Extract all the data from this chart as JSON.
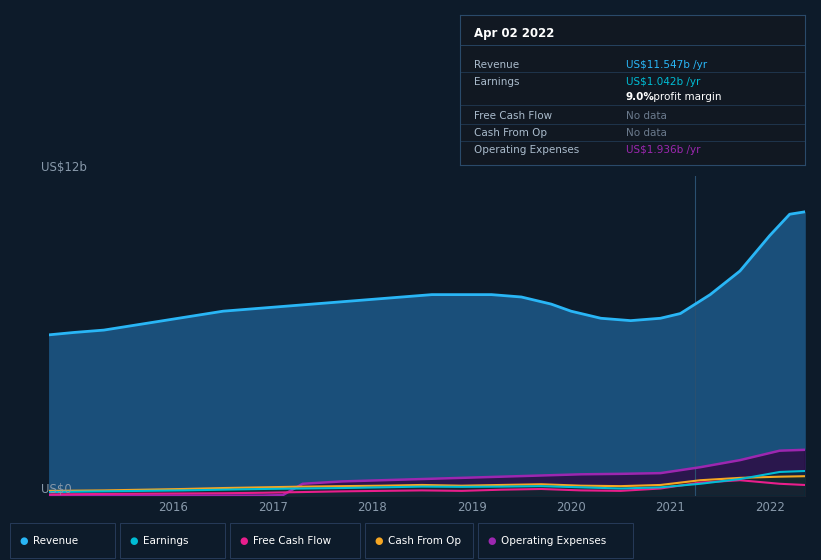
{
  "bg_color": "#0d1b2a",
  "plot_bg_color": "#0d1b2a",
  "ylabel": "US$12b",
  "ylabel_bottom": "US$0",
  "grid_color": "#1e3a4f",
  "divider_x": 2021.25,
  "xlim": [
    2014.75,
    2022.35
  ],
  "ylim": [
    0,
    13.5
  ],
  "x_ticks": [
    2016,
    2017,
    2018,
    2019,
    2020,
    2021,
    2022
  ],
  "series": {
    "revenue": {
      "color": "#29b6f6",
      "fill_color": "#1a4f7a",
      "label": "Revenue",
      "x": [
        2014.75,
        2015.0,
        2015.3,
        2015.6,
        2015.9,
        2016.2,
        2016.5,
        2016.8,
        2017.1,
        2017.4,
        2017.7,
        2018.0,
        2018.3,
        2018.6,
        2018.9,
        2019.2,
        2019.5,
        2019.6,
        2019.8,
        2020.0,
        2020.3,
        2020.6,
        2020.9,
        2021.1,
        2021.4,
        2021.7,
        2022.0,
        2022.2,
        2022.35
      ],
      "y": [
        6.8,
        6.9,
        7.0,
        7.2,
        7.4,
        7.6,
        7.8,
        7.9,
        8.0,
        8.1,
        8.2,
        8.3,
        8.4,
        8.5,
        8.5,
        8.5,
        8.4,
        8.3,
        8.1,
        7.8,
        7.5,
        7.4,
        7.5,
        7.7,
        8.5,
        9.5,
        11.0,
        11.9,
        12.0
      ]
    },
    "earnings": {
      "color": "#00bcd4",
      "label": "Earnings",
      "x": [
        2014.75,
        2015.3,
        2015.7,
        2016.1,
        2016.5,
        2016.9,
        2017.3,
        2017.7,
        2018.1,
        2018.5,
        2018.9,
        2019.3,
        2019.7,
        2020.1,
        2020.5,
        2020.9,
        2021.3,
        2021.7,
        2022.1,
        2022.35
      ],
      "y": [
        0.15,
        0.18,
        0.2,
        0.22,
        0.25,
        0.28,
        0.3,
        0.32,
        0.35,
        0.38,
        0.37,
        0.38,
        0.4,
        0.35,
        0.3,
        0.35,
        0.5,
        0.7,
        1.0,
        1.04
      ]
    },
    "free_cash_flow": {
      "color": "#e91e8c",
      "label": "Free Cash Flow",
      "x": [
        2014.75,
        2015.3,
        2015.7,
        2016.1,
        2016.5,
        2016.9,
        2017.3,
        2017.7,
        2018.1,
        2018.5,
        2018.9,
        2019.3,
        2019.7,
        2020.1,
        2020.5,
        2020.9,
        2021.3,
        2021.7,
        2022.1,
        2022.35
      ],
      "y": [
        0.05,
        0.07,
        0.08,
        0.09,
        0.1,
        0.12,
        0.15,
        0.18,
        0.2,
        0.22,
        0.2,
        0.25,
        0.28,
        0.22,
        0.2,
        0.3,
        0.55,
        0.65,
        0.5,
        0.45
      ]
    },
    "cash_from_op": {
      "color": "#f5a623",
      "label": "Cash From Op",
      "x": [
        2014.75,
        2015.3,
        2015.7,
        2016.1,
        2016.5,
        2016.9,
        2017.3,
        2017.7,
        2018.1,
        2018.5,
        2018.9,
        2019.3,
        2019.7,
        2020.1,
        2020.5,
        2020.9,
        2021.3,
        2021.7,
        2022.1,
        2022.35
      ],
      "y": [
        0.2,
        0.22,
        0.25,
        0.28,
        0.32,
        0.35,
        0.38,
        0.4,
        0.42,
        0.45,
        0.42,
        0.45,
        0.48,
        0.42,
        0.4,
        0.45,
        0.65,
        0.75,
        0.8,
        0.82
      ]
    },
    "operating_expenses": {
      "color": "#9c27b0",
      "label": "Operating Expenses",
      "x": [
        2014.75,
        2015.3,
        2015.7,
        2016.1,
        2016.5,
        2016.9,
        2017.1,
        2017.3,
        2017.7,
        2018.1,
        2018.5,
        2018.9,
        2019.3,
        2019.7,
        2020.1,
        2020.5,
        2020.9,
        2021.3,
        2021.7,
        2022.1,
        2022.35
      ],
      "y": [
        0.0,
        0.0,
        0.0,
        0.0,
        0.0,
        0.0,
        0.02,
        0.5,
        0.6,
        0.65,
        0.7,
        0.75,
        0.8,
        0.85,
        0.9,
        0.92,
        0.95,
        1.2,
        1.5,
        1.9,
        1.936
      ]
    }
  },
  "tooltip": {
    "title": "Apr 02 2022",
    "rows": [
      {
        "label": "Revenue",
        "value": "US$11.547b /yr",
        "value_color": "#29b6f6",
        "separator": true
      },
      {
        "label": "Earnings",
        "value": "US$1.042b /yr",
        "value_color": "#00bcd4",
        "separator": false
      },
      {
        "label": "",
        "value": "9.0% profit margin",
        "value_color": "#cccccc",
        "bold_prefix": "9.0%",
        "separator": true
      },
      {
        "label": "Free Cash Flow",
        "value": "No data",
        "value_color": "#6b7a8d",
        "separator": true
      },
      {
        "label": "Cash From Op",
        "value": "No data",
        "value_color": "#6b7a8d",
        "separator": true
      },
      {
        "label": "Operating Expenses",
        "value": "US$1.936b /yr",
        "value_color": "#9c27b0",
        "separator": false
      }
    ]
  },
  "legend_items": [
    {
      "label": "Revenue",
      "color": "#29b6f6"
    },
    {
      "label": "Earnings",
      "color": "#00bcd4"
    },
    {
      "label": "Free Cash Flow",
      "color": "#e91e8c"
    },
    {
      "label": "Cash From Op",
      "color": "#f5a623"
    },
    {
      "label": "Operating Expenses",
      "color": "#9c27b0"
    }
  ]
}
